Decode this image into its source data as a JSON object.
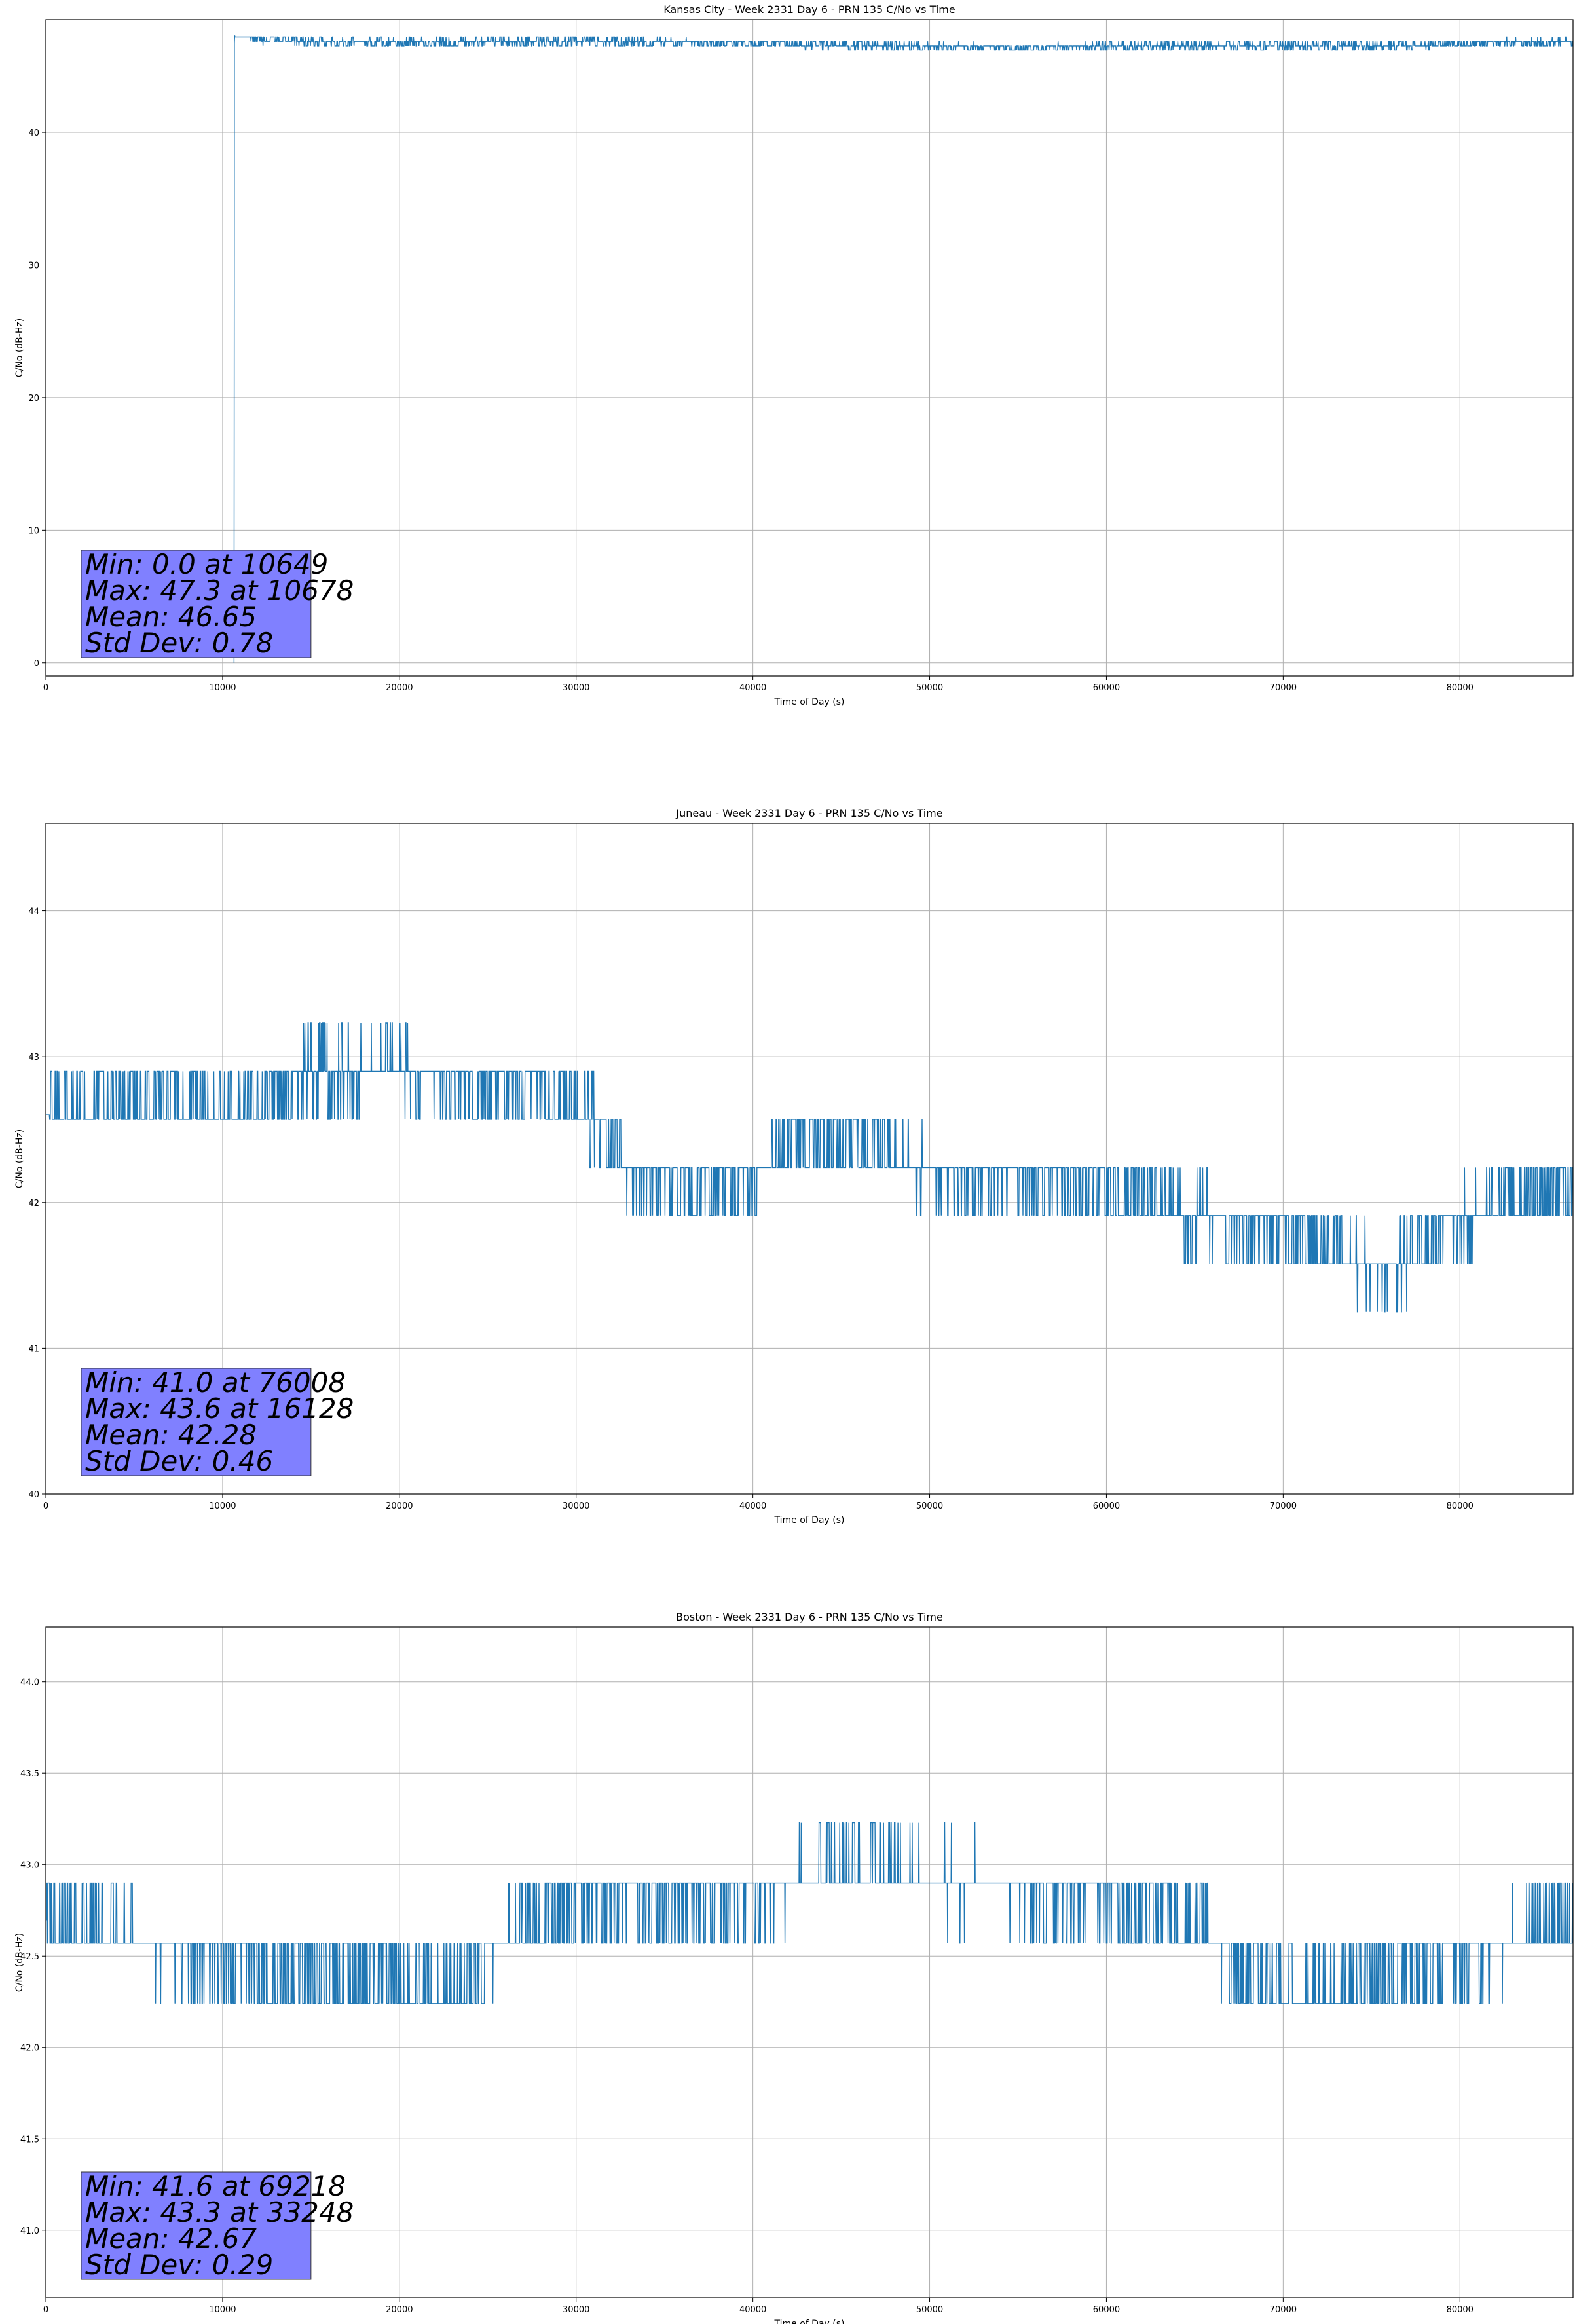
{
  "chart_data": [
    {
      "type": "line",
      "title": "Kansas City - Week 2331 Day 6 - PRN 135 C/No vs Time",
      "xlabel": "Time of Day (s)",
      "ylabel": "C/No (dB-Hz)",
      "xlim": [
        0,
        86400
      ],
      "ylim": [
        -1,
        48.5
      ],
      "xticks": [
        0,
        10000,
        20000,
        30000,
        40000,
        50000,
        60000,
        70000,
        80000
      ],
      "yticks": [
        0,
        10,
        20,
        30,
        40
      ],
      "ytick_decimals": 0,
      "grid": true,
      "color": "#1f77b4",
      "stats": [
        "Min: 0.0 at 10649",
        "Max: 47.3 at 10678",
        "Mean: 46.65",
        "Std Dev: 0.78"
      ],
      "series": [
        {
          "x": [
            10649,
            10650,
            10660,
            10670,
            10678,
            12000,
            15000,
            20000,
            25000,
            30000,
            35000,
            40000,
            45000,
            50000,
            55000,
            60000,
            65000,
            70000,
            75000,
            80000,
            86400
          ],
          "y": [
            0.0,
            38.8,
            46.4,
            46.9,
            47.3,
            47.0,
            46.8,
            46.8,
            46.8,
            46.9,
            46.8,
            46.7,
            46.6,
            46.5,
            46.4,
            46.5,
            46.5,
            46.6,
            46.5,
            46.7,
            46.8
          ],
          "spread": [
            0,
            0,
            0,
            0,
            0,
            0.6,
            0.6,
            0.6,
            0.6,
            0.7,
            0.6,
            0.6,
            0.6,
            0.5,
            0.5,
            0.6,
            0.6,
            0.7,
            0.6,
            0.6,
            0.6
          ]
        }
      ]
    },
    {
      "type": "line",
      "title": "Juneau - Week 2331 Day 6 - PRN 135 C/No vs Time",
      "xlabel": "Time of Day (s)",
      "ylabel": "C/No (dB-Hz)",
      "xlim": [
        0,
        86400
      ],
      "ylim": [
        40.0,
        44.6
      ],
      "xticks": [
        0,
        10000,
        20000,
        30000,
        40000,
        50000,
        60000,
        70000,
        80000
      ],
      "yticks": [
        40,
        41,
        42,
        43,
        44
      ],
      "ytick_decimals": 0,
      "grid": true,
      "color": "#1f77b4",
      "stats": [
        "Min: 41.0 at 76008",
        "Max: 43.6 at 16128",
        "Mean: 42.28",
        "Std Dev: 0.46"
      ],
      "series": [
        {
          "x": [
            0,
            5000,
            10000,
            13000,
            16128,
            20000,
            25000,
            29000,
            31500,
            33000,
            36000,
            40000,
            43000,
            47000,
            50000,
            55000,
            60000,
            65000,
            70000,
            74000,
            76008,
            79000,
            82000,
            86400
          ],
          "y": [
            42.6,
            42.7,
            42.6,
            42.8,
            42.9,
            42.9,
            42.8,
            42.8,
            42.5,
            42.2,
            42.1,
            42.2,
            42.4,
            42.4,
            42.2,
            42.2,
            42.1,
            41.9,
            41.8,
            41.6,
            41.5,
            41.8,
            42.0,
            42.1
          ],
          "spread": [
            0.4,
            0.4,
            0.4,
            0.4,
            0.5,
            0.4,
            0.4,
            0.4,
            0.4,
            0.4,
            0.4,
            0.4,
            0.4,
            0.4,
            0.4,
            0.4,
            0.4,
            0.4,
            0.4,
            0.4,
            0.4,
            0.4,
            0.4,
            0.4
          ]
        }
      ]
    },
    {
      "type": "line",
      "title": "Boston - Week 2331 Day 6 - PRN 135 C/No vs Time",
      "xlabel": "Time of Day (s)",
      "ylabel": "C/No (dB-Hz)",
      "xlim": [
        0,
        86400
      ],
      "ylim": [
        40.63,
        44.3
      ],
      "xticks": [
        0,
        10000,
        20000,
        30000,
        40000,
        50000,
        60000,
        70000,
        80000
      ],
      "yticks": [
        41.0,
        41.5,
        42.0,
        42.5,
        43.0,
        43.5,
        44.0
      ],
      "ytick_decimals": 1,
      "grid": true,
      "color": "#1f77b4",
      "stats": [
        "Min: 41.6 at 69218",
        "Max: 43.3 at 33248",
        "Mean: 42.67",
        "Std Dev: 0.29"
      ],
      "series": [
        {
          "x": [
            0,
            4000,
            8000,
            12000,
            16000,
            20000,
            23000,
            26000,
            30000,
            33248,
            37000,
            42000,
            46000,
            50000,
            54000,
            58000,
            62000,
            66000,
            69218,
            72000,
            76000,
            80000,
            84000,
            86400
          ],
          "y": [
            42.7,
            42.6,
            42.5,
            42.4,
            42.4,
            42.4,
            42.3,
            42.6,
            42.8,
            42.8,
            42.8,
            42.9,
            43.0,
            42.9,
            42.9,
            42.8,
            42.8,
            42.6,
            42.3,
            42.3,
            42.4,
            42.5,
            42.6,
            42.7
          ],
          "spread": [
            0.35,
            0.35,
            0.3,
            0.3,
            0.3,
            0.3,
            0.3,
            0.35,
            0.35,
            0.35,
            0.35,
            0.35,
            0.35,
            0.35,
            0.35,
            0.35,
            0.35,
            0.35,
            0.35,
            0.35,
            0.35,
            0.35,
            0.35,
            0.35
          ]
        }
      ]
    }
  ]
}
